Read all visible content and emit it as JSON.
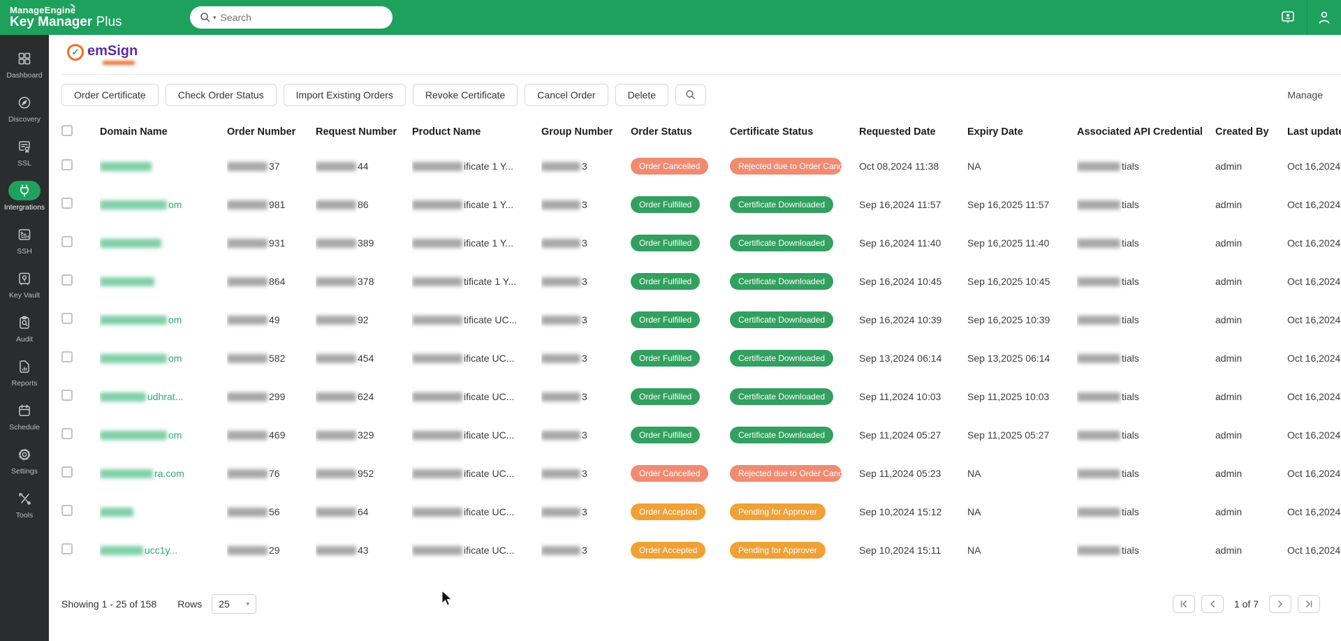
{
  "header": {
    "brand_line1": "ManageEngine",
    "brand_bold": "Key Manager",
    "brand_regular": " Plus",
    "search_placeholder": "Search"
  },
  "icons": {
    "header": [
      "search-magnifier",
      "search-caret-down",
      "remote-assist-card",
      "user-profile"
    ],
    "sidebar": [
      "grid",
      "compass",
      "certificate",
      "plug",
      "ssh-terminal",
      "vault",
      "clipboard-search",
      "report-document",
      "calendar",
      "gear",
      "tools"
    ],
    "toolbar": [
      "search-magnifier"
    ],
    "pagination": [
      "first-page",
      "prev-page",
      "next-page",
      "last-page"
    ],
    "rows_select": [
      "chevron-down"
    ]
  },
  "colors": {
    "header_green": "#1FA15E",
    "badge_success": "#32A05F",
    "badge_cancelled": "#F08B72",
    "badge_pending": "#F0A136",
    "domain_green": "#2EA876"
  },
  "sidebar": {
    "items": [
      {
        "label": "Dashboard",
        "icon": "grid",
        "active": false
      },
      {
        "label": "Discovery",
        "icon": "compass",
        "active": false
      },
      {
        "label": "SSL",
        "icon": "certificate",
        "active": false
      },
      {
        "label": "Intergrations",
        "icon": "plug",
        "active": true
      },
      {
        "label": "SSH",
        "icon": "ssh-terminal",
        "active": false
      },
      {
        "label": "Key Vault",
        "icon": "vault",
        "active": false
      },
      {
        "label": "Audit",
        "icon": "clipboard-search",
        "active": false
      },
      {
        "label": "Reports",
        "icon": "report-document",
        "active": false
      },
      {
        "label": "Schedule",
        "icon": "calendar",
        "active": false
      },
      {
        "label": "Settings",
        "icon": "gear",
        "active": false
      },
      {
        "label": "Tools",
        "icon": "tools",
        "active": false
      }
    ]
  },
  "page": {
    "integration_name": "emSign",
    "manage_label": "Manage",
    "toolbar_buttons": [
      "Order Certificate",
      "Check Order Status",
      "Import Existing Orders",
      "Revoke Certificate",
      "Cancel Order",
      "Delete"
    ]
  },
  "table": {
    "columns": [
      "Domain Name",
      "Order Number",
      "Request Number",
      "Product Name",
      "Group Number",
      "Order Status",
      "Certificate Status",
      "Requested Date",
      "Expiry Date",
      "Associated API Credential",
      "Created By",
      "Last updated"
    ],
    "rows": [
      {
        "domain": {
          "visible": "",
          "blur_w": 74
        },
        "order": "37",
        "request": "44",
        "product": "ificate 1 Y...",
        "group": "3",
        "order_status": {
          "label": "Order Cancelled",
          "type": "cancelled"
        },
        "certificate_status": {
          "label": "Rejected due to Order Cance",
          "type": "cancelled"
        },
        "requested": "Oct 08,2024 11:38",
        "expiry": "NA",
        "credential": "tials",
        "created_by": "admin",
        "last_updated": "Oct 16,2024"
      },
      {
        "domain": {
          "visible": "om",
          "blur_w": 96
        },
        "order": "981",
        "request": "86",
        "product": "ificate 1 Y...",
        "group": "3",
        "order_status": {
          "label": "Order Fulfilled",
          "type": "success"
        },
        "certificate_status": {
          "label": "Certificate Downloaded",
          "type": "success"
        },
        "requested": "Sep 16,2024 11:57",
        "expiry": "Sep 16,2025 11:57",
        "credential": "tials",
        "created_by": "admin",
        "last_updated": "Oct 16,2024"
      },
      {
        "domain": {
          "visible": "",
          "blur_w": 88
        },
        "order": "931",
        "request": "389",
        "product": "ificate 1 Y...",
        "group": "3",
        "order_status": {
          "label": "Order Fulfilled",
          "type": "success"
        },
        "certificate_status": {
          "label": "Certificate Downloaded",
          "type": "success"
        },
        "requested": "Sep 16,2024 11:40",
        "expiry": "Sep 16,2025 11:40",
        "credential": "tials",
        "created_by": "admin",
        "last_updated": "Oct 16,2024"
      },
      {
        "domain": {
          "visible": "",
          "blur_w": 78
        },
        "order": "864",
        "request": "378",
        "product": "tificate 1 Y...",
        "group": "3",
        "order_status": {
          "label": "Order Fulfilled",
          "type": "success"
        },
        "certificate_status": {
          "label": "Certificate Downloaded",
          "type": "success"
        },
        "requested": "Sep 16,2024 10:45",
        "expiry": "Sep 16,2025 10:45",
        "credential": "tials",
        "created_by": "admin",
        "last_updated": "Oct 16,2024"
      },
      {
        "domain": {
          "visible": "om",
          "blur_w": 96
        },
        "order": "49",
        "request": "92",
        "product": "tificate UC...",
        "group": "3",
        "order_status": {
          "label": "Order Fulfilled",
          "type": "success"
        },
        "certificate_status": {
          "label": "Certificate Downloaded",
          "type": "success"
        },
        "requested": "Sep 16,2024 10:39",
        "expiry": "Sep 16,2025 10:39",
        "credential": "tials",
        "created_by": "admin",
        "last_updated": "Oct 16,2024"
      },
      {
        "domain": {
          "visible": "om",
          "blur_w": 96
        },
        "order": "582",
        "request": "454",
        "product": "ificate UC...",
        "group": "3",
        "order_status": {
          "label": "Order Fulfilled",
          "type": "success"
        },
        "certificate_status": {
          "label": "Certificate Downloaded",
          "type": "success"
        },
        "requested": "Sep 13,2024 06:14",
        "expiry": "Sep 13,2025 06:14",
        "credential": "tials",
        "created_by": "admin",
        "last_updated": "Oct 16,2024"
      },
      {
        "domain": {
          "visible": "udhrat...",
          "blur_w": 66
        },
        "order": "299",
        "request": "624",
        "product": "ificate UC...",
        "group": "3",
        "order_status": {
          "label": "Order Fulfilled",
          "type": "success"
        },
        "certificate_status": {
          "label": "Certificate Downloaded",
          "type": "success"
        },
        "requested": "Sep 11,2024 10:03",
        "expiry": "Sep 11,2025 10:03",
        "credential": "tials",
        "created_by": "admin",
        "last_updated": "Oct 16,2024"
      },
      {
        "domain": {
          "visible": "om",
          "blur_w": 96
        },
        "order": "469",
        "request": "329",
        "product": "ificate UC...",
        "group": "3",
        "order_status": {
          "label": "Order Fulfilled",
          "type": "success"
        },
        "certificate_status": {
          "label": "Certificate Downloaded",
          "type": "success"
        },
        "requested": "Sep 11,2024 05:27",
        "expiry": "Sep 11,2025 05:27",
        "credential": "tials",
        "created_by": "admin",
        "last_updated": "Oct 16,2024"
      },
      {
        "domain": {
          "visible": "ra.com",
          "blur_w": 76
        },
        "order": "76",
        "request": "952",
        "product": "ificate UC...",
        "group": "3",
        "order_status": {
          "label": "Order Cancelled",
          "type": "cancelled"
        },
        "certificate_status": {
          "label": "Rejected due to Order Cance",
          "type": "cancelled"
        },
        "requested": "Sep 11,2024 05:23",
        "expiry": "NA",
        "credential": "tials",
        "created_by": "admin",
        "last_updated": "Oct 16,2024"
      },
      {
        "domain": {
          "visible": "",
          "blur_w": 48
        },
        "order": "56",
        "request": "64",
        "product": "ificate UC...",
        "group": "3",
        "order_status": {
          "label": "Order Accepted",
          "type": "pending"
        },
        "certificate_status": {
          "label": "Pending for Approver",
          "type": "pending"
        },
        "requested": "Sep 10,2024 15:12",
        "expiry": "NA",
        "credential": "tials",
        "created_by": "admin",
        "last_updated": "Oct 16,2024"
      },
      {
        "domain": {
          "visible": "ucc1y...",
          "blur_w": 62
        },
        "order": "29",
        "request": "43",
        "product": "ificate UC...",
        "group": "3",
        "order_status": {
          "label": "Order Accepted",
          "type": "pending"
        },
        "certificate_status": {
          "label": "Pending for Approver",
          "type": "pending"
        },
        "requested": "Sep 10,2024 15:11",
        "expiry": "NA",
        "credential": "tials",
        "created_by": "admin",
        "last_updated": "Oct 16,2024"
      }
    ]
  },
  "footer": {
    "showing": "Showing 1 - 25 of 158",
    "rows_label": "Rows",
    "rows_value": "25",
    "page_count": "1 of 7"
  }
}
